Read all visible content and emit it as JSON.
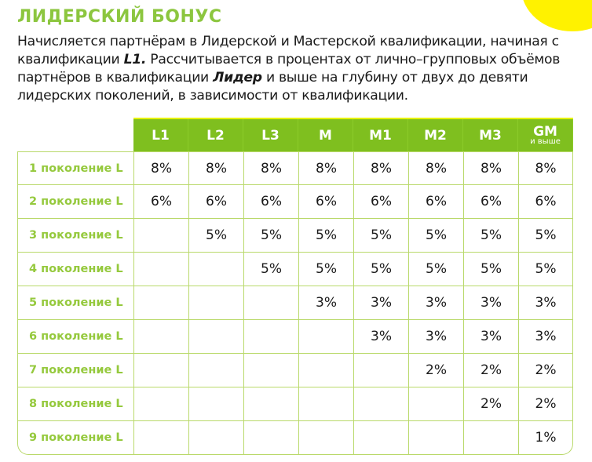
{
  "title": "ЛИДЕРСКИЙ БОНУС",
  "description": {
    "part1": "Начисляется партнёрам в Лидерской и Мастерской квалификации, начиная с квалификации ",
    "bold1": "L1.",
    "part2": " Рассчитывается в процентах от лично–групповых объёмов партнёров в квалификации ",
    "bold2": "Лидер",
    "part3": " и выше на глубину от двух до девяти лидерских поколений, в зависимости от квалификации."
  },
  "colors": {
    "accent_green": "#8cc63f",
    "header_green": "#7fbf1f",
    "grid_line": "#b9d96a",
    "yellow": "#fff200"
  },
  "table": {
    "columns": [
      {
        "main": "L1",
        "sub": ""
      },
      {
        "main": "L2",
        "sub": ""
      },
      {
        "main": "L3",
        "sub": ""
      },
      {
        "main": "M",
        "sub": ""
      },
      {
        "main": "M1",
        "sub": ""
      },
      {
        "main": "M2",
        "sub": ""
      },
      {
        "main": "M3",
        "sub": ""
      },
      {
        "main": "GM",
        "sub": "и выше"
      }
    ],
    "rows": [
      {
        "label": "1 поколение L",
        "values": [
          "8%",
          "8%",
          "8%",
          "8%",
          "8%",
          "8%",
          "8%",
          "8%"
        ]
      },
      {
        "label": "2 поколение L",
        "values": [
          "6%",
          "6%",
          "6%",
          "6%",
          "6%",
          "6%",
          "6%",
          "6%"
        ]
      },
      {
        "label": "3 поколение L",
        "values": [
          "",
          "5%",
          "5%",
          "5%",
          "5%",
          "5%",
          "5%",
          "5%"
        ]
      },
      {
        "label": "4 поколение L",
        "values": [
          "",
          "",
          "5%",
          "5%",
          "5%",
          "5%",
          "5%",
          "5%"
        ]
      },
      {
        "label": "5 поколение L",
        "values": [
          "",
          "",
          "",
          "3%",
          "3%",
          "3%",
          "3%",
          "3%"
        ]
      },
      {
        "label": "6 поколение L",
        "values": [
          "",
          "",
          "",
          "",
          "3%",
          "3%",
          "3%",
          "3%"
        ]
      },
      {
        "label": "7 поколение L",
        "values": [
          "",
          "",
          "",
          "",
          "",
          "2%",
          "2%",
          "2%"
        ]
      },
      {
        "label": "8 поколение L",
        "values": [
          "",
          "",
          "",
          "",
          "",
          "",
          "2%",
          "2%"
        ]
      },
      {
        "label": "9 поколение L",
        "values": [
          "",
          "",
          "",
          "",
          "",
          "",
          "",
          "1%"
        ]
      }
    ]
  }
}
